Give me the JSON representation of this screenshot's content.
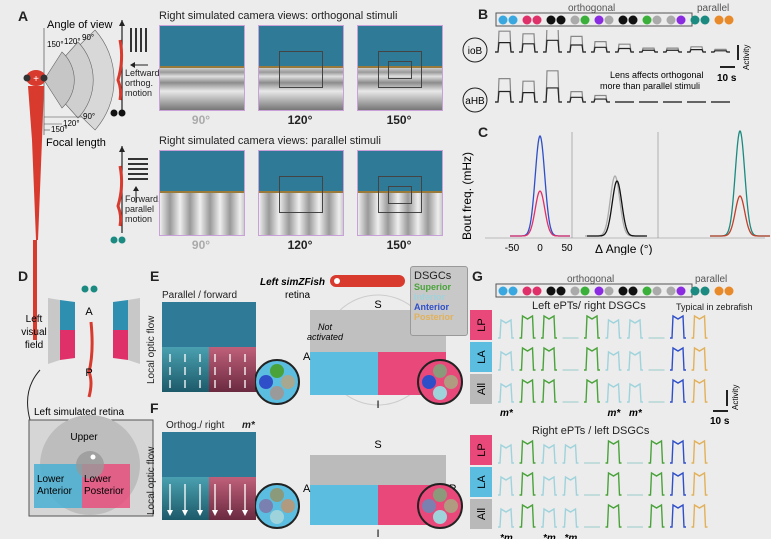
{
  "panels": {
    "A": "A",
    "B": "B",
    "C": "C",
    "D": "D",
    "E": "E",
    "F": "F",
    "G": "G"
  },
  "A": {
    "angle_of_view": "Angle of view",
    "focal_length": "Focal length",
    "angles": [
      "150°",
      "120°",
      "90°"
    ],
    "focal_marks": [
      "90°",
      "120°",
      "150°"
    ],
    "orth_title": "Right simulated camera views: orthogonal stimuli",
    "par_title": "Right simulated camera views: parallel stimuli",
    "orth_motion": [
      "Leftward",
      "orthog.",
      "motion"
    ],
    "par_motion": [
      "Forward,",
      "parallel",
      "motion"
    ],
    "view_labels": [
      "90°",
      "120°",
      "150°"
    ]
  },
  "B": {
    "orthogonal": "orthogonal",
    "parallel": "parallel",
    "regions": [
      "ioB",
      "aHB"
    ],
    "activity": "Activity",
    "scale": "10 s",
    "note": [
      "Lens affects orthogonal",
      "more than parallel stimuli"
    ]
  },
  "C": {
    "ylabel": "Bout freq. (mHz)",
    "xlabel": "Δ Angle (°)",
    "xticks": [
      "-50",
      "0",
      "50"
    ]
  },
  "D": {
    "visual_field": [
      "Left",
      "visual",
      "field"
    ],
    "A": "A",
    "P": "P",
    "retina_title": "Left simulated retina",
    "upper": "Upper",
    "lower_anterior": [
      "Lower",
      "Anterior"
    ],
    "lower_posterior": [
      "Lower",
      "Posterior"
    ]
  },
  "E": {
    "title": "Parallel / forward",
    "ylabel": "Local optic flow",
    "simzfish": "Left simZFish",
    "retina": "retina",
    "not_activated": [
      "Not",
      "activated"
    ],
    "S": "S",
    "A": "A",
    "I": "I",
    "dsgcs": {
      "title": "DSGCs",
      "items": [
        {
          "label": "Superior",
          "color": "#4aa33a"
        },
        {
          "label": "Inferior",
          "color": "#9fd3dc"
        },
        {
          "label": "Anterior",
          "color": "#2f4fc9"
        },
        {
          "label": "Posterior",
          "color": "#e2b15a"
        }
      ]
    }
  },
  "F": {
    "title": "Orthog./ right",
    "mark": "m*",
    "ylabel": "Local optic flow",
    "S": "S",
    "A": "A",
    "P": "P",
    "I": "I"
  },
  "G": {
    "orthogonal": "orthogonal",
    "parallel": "parallel",
    "top_title": "Left ePTs/ right DSGCs",
    "bottom_title": "Right ePTs / left DSGCs",
    "typical": "Typical in zebrafish",
    "rows": [
      "LP",
      "LA",
      "All"
    ],
    "activity": "Activity",
    "scale": "10 s",
    "top_marks": [
      "m*",
      "m*",
      "m*"
    ],
    "bottom_marks": [
      "*m",
      "*m",
      "*m"
    ]
  },
  "colors": {
    "sky": "#2f7a96",
    "fish": "#d83a2e",
    "lp": "#e8497a",
    "la": "#5bbde0",
    "all": "#b9b9b9",
    "blue": "#2f4fc9",
    "green": "#4aa33a",
    "cyan": "#9fd3dc",
    "tan": "#e2b15a",
    "teal": "#1b8a80",
    "orange": "#e8892a"
  }
}
